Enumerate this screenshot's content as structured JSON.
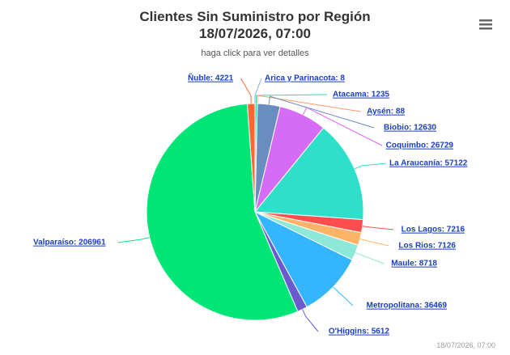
{
  "chart_data": {
    "type": "pie",
    "title": [
      "Clientes Sin Suministro por Región",
      "18/07/2026, 07:00"
    ],
    "subtitle": "haga click para ver detalles",
    "credits": "18/07/2026, 07:00",
    "categories": [
      "Arica y Parinacota",
      "Atacama",
      "Aysén",
      "Biobio",
      "Coquimbo",
      "La Araucanía",
      "Los Lagos",
      "Los Rios",
      "Maule",
      "Metropolitana",
      "O'Higgins",
      "Valparaíso",
      "Ñuble"
    ],
    "values": [
      8,
      1235,
      88,
      12630,
      26729,
      57122,
      7216,
      7126,
      8718,
      36469,
      5612,
      206961,
      4221
    ],
    "value_labels": [
      "Arica y Parinacota: 8",
      "Atacama: 1235",
      "Aysén: 88",
      "Biobio: 12630",
      "Coquimbo: 26729",
      "La Araucanía: 57122",
      "Los Lagos: 7216",
      "Los Rios: 7126",
      "Maule: 8718",
      "Metropolitana: 36469",
      "O'Higgins: 5612",
      "Valparaíso: 206961",
      "Ñuble: 4221"
    ],
    "colors": [
      "#7cb5ec",
      "#2ee0a0",
      "#ff9966",
      "#6a8dbf",
      "#d66bf5",
      "#2ee0c9",
      "#ff4d4d",
      "#ffb366",
      "#8ee8d8",
      "#33b5ff",
      "#6a5acd",
      "#00e676",
      "#ff6633"
    ]
  }
}
